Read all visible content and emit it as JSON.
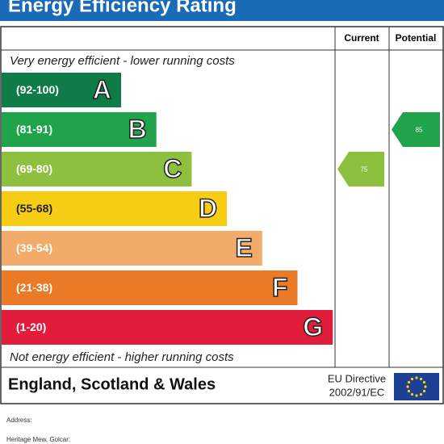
{
  "header": {
    "title": "Energy Efficiency Rating"
  },
  "columns": [
    "Current",
    "Potential"
  ],
  "top_note": "Very energy efficient - lower running costs",
  "bands": [
    {
      "range": "(92-100)",
      "letter": "A",
      "color": "#0f7b47"
    },
    {
      "range": "(81-91)",
      "letter": "B",
      "color": "#1fa34b"
    },
    {
      "range": "(69-80)",
      "letter": "C",
      "color": "#8dc03f"
    },
    {
      "range": "(55-68)",
      "letter": "D",
      "color": "#f6cc15"
    },
    {
      "range": "(39-54)",
      "letter": "E",
      "color": "#f2ab68"
    },
    {
      "range": "(21-38)",
      "letter": "F",
      "color": "#eb7a27"
    },
    {
      "range": "(1-20)",
      "letter": "G",
      "color": "#e21d3c"
    }
  ],
  "current": 75,
  "potential": 85,
  "bottom_note": "Not energy efficient - higher running costs",
  "footer": {
    "region": "England, Scotland & Wales",
    "directive": [
      "EU Directive",
      "2002/91/EC"
    ]
  },
  "address": {
    "label": "Address:",
    "line": "Heritage Mew, Golcar:"
  }
}
